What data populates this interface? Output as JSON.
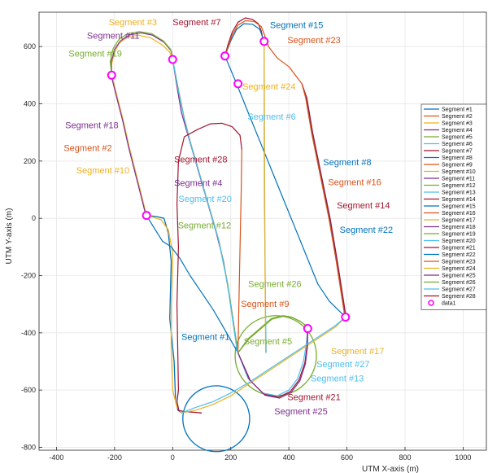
{
  "chart_data": {
    "type": "line",
    "title": "",
    "xlabel": "UTM X-axis (m)",
    "ylabel": "UTM Y-axis (m)",
    "xlim": [
      -460,
      1080
    ],
    "ylim": [
      -810,
      720
    ],
    "xticks": [
      -400,
      -200,
      0,
      200,
      400,
      600,
      800,
      1000
    ],
    "yticks": [
      -800,
      -600,
      -400,
      -200,
      0,
      200,
      400,
      600
    ],
    "grid": true,
    "legend_position": "right",
    "palette": [
      "#0072BD",
      "#D95319",
      "#EDB120",
      "#7E2F8E",
      "#77AC30",
      "#4DBEEE",
      "#A2142F"
    ],
    "series": [
      {
        "name": "Segment #1",
        "color": "#0072BD",
        "x": [
          -90,
          -60,
          -35,
          -5,
          25,
          60,
          100,
          140,
          180,
          225
        ],
        "y": [
          10,
          -40,
          -80,
          -100,
          -140,
          -200,
          -260,
          -320,
          -390,
          -470
        ]
      },
      {
        "name": "Segment #2",
        "color": "#D95319",
        "x": [
          -210,
          -190,
          -170,
          -150,
          -130,
          -110,
          -90
        ],
        "y": [
          500,
          420,
          340,
          250,
          170,
          90,
          10
        ]
      },
      {
        "name": "Segment #3",
        "color": "#EDB120",
        "x": [
          -210,
          -210,
          -200,
          -185,
          -160,
          -120,
          -75,
          -35,
          -10,
          0
        ],
        "y": [
          500,
          540,
          580,
          610,
          630,
          640,
          630,
          605,
          580,
          555
        ]
      },
      {
        "name": "Segment #4",
        "color": "#7E2F8E",
        "x": [
          0,
          15,
          30,
          50,
          70,
          90,
          110,
          130,
          150,
          175,
          200,
          225
        ],
        "y": [
          555,
          460,
          370,
          300,
          230,
          160,
          90,
          20,
          -50,
          -150,
          -300,
          -470
        ]
      },
      {
        "name": "Segment #5",
        "color": "#77AC30",
        "x": [
          225,
          260,
          300,
          340,
          380,
          410,
          440,
          460,
          465
        ],
        "y": [
          -470,
          -420,
          -385,
          -350,
          -340,
          -345,
          -360,
          -375,
          -385
        ]
      },
      {
        "name": "Segment #6",
        "color": "#4DBEEE",
        "x": [
          315,
          315,
          315,
          316,
          318,
          320,
          322
        ],
        "y": [
          618,
          500,
          300,
          50,
          -150,
          -350,
          -470
        ]
      },
      {
        "name": "Segment #7",
        "color": "#A2142F",
        "x": [
          180,
          190,
          205,
          225,
          250,
          275,
          295,
          305,
          312
        ],
        "y": [
          567,
          605,
          650,
          685,
          700,
          695,
          680,
          655,
          618
        ]
      },
      {
        "name": "Segment #8",
        "color": "#0072BD",
        "x": [
          445,
          460,
          480,
          510,
          540,
          565,
          585,
          595
        ],
        "y": [
          470,
          420,
          300,
          150,
          0,
          -150,
          -280,
          -345
        ]
      },
      {
        "name": "Segment #9",
        "color": "#D95319",
        "x": [
          225,
          227,
          230,
          233,
          236,
          238
        ],
        "y": [
          -470,
          -350,
          -200,
          -50,
          100,
          240
        ]
      },
      {
        "name": "Segment #10",
        "color": "#EDB120",
        "x": [
          -210,
          -190,
          -170,
          -150,
          -130,
          -110,
          -90
        ],
        "y": [
          500,
          420,
          340,
          250,
          170,
          90,
          10
        ]
      },
      {
        "name": "Segment #11",
        "color": "#7E2F8E",
        "x": [
          -210,
          -212,
          -200,
          -180,
          -150,
          -110,
          -70,
          -30,
          -5,
          0
        ],
        "y": [
          500,
          545,
          590,
          620,
          640,
          648,
          640,
          615,
          585,
          555
        ]
      },
      {
        "name": "Segment #12",
        "color": "#77AC30",
        "x": [
          0,
          20,
          40,
          60,
          80,
          100,
          120,
          140,
          160,
          190,
          225
        ],
        "y": [
          555,
          450,
          350,
          270,
          200,
          130,
          60,
          -10,
          -80,
          -230,
          -470
        ]
      },
      {
        "name": "Segment #13",
        "color": "#4DBEEE",
        "x": [
          225,
          260,
          310,
          360,
          400,
          430,
          450,
          460,
          465
        ],
        "y": [
          -470,
          -560,
          -610,
          -620,
          -600,
          -560,
          -500,
          -440,
          -385
        ]
      },
      {
        "name": "Segment #14",
        "color": "#A2142F",
        "x": [
          445,
          462,
          482,
          512,
          542,
          567,
          587,
          597
        ],
        "y": [
          470,
          420,
          300,
          150,
          0,
          -150,
          -280,
          -345
        ]
      },
      {
        "name": "Segment #15",
        "color": "#0072BD",
        "x": [
          180,
          200,
          220,
          245,
          275,
          300,
          315
        ],
        "y": [
          567,
          620,
          660,
          680,
          678,
          660,
          618
        ]
      },
      {
        "name": "Segment #16",
        "color": "#D95319",
        "x": [
          445,
          458,
          478,
          508,
          538,
          563,
          583,
          593
        ],
        "y": [
          470,
          420,
          300,
          150,
          0,
          -150,
          -280,
          -345
        ]
      },
      {
        "name": "Segment #17",
        "color": "#EDB120",
        "x": [
          595,
          560,
          500,
          440,
          380,
          320,
          260,
          200,
          140,
          80,
          30
        ],
        "y": [
          -345,
          -380,
          -420,
          -460,
          -500,
          -540,
          -580,
          -620,
          -650,
          -670,
          -680
        ]
      },
      {
        "name": "Segment #18",
        "color": "#7E2F8E",
        "x": [
          -212,
          -192,
          -172,
          -152,
          -132,
          -112,
          -92
        ],
        "y": [
          500,
          420,
          340,
          250,
          170,
          90,
          10
        ]
      },
      {
        "name": "Segment #19",
        "color": "#77AC30",
        "x": [
          -210,
          -215,
          -205,
          -185,
          -155,
          -115,
          -72,
          -32,
          -7,
          0
        ],
        "y": [
          500,
          548,
          593,
          625,
          645,
          652,
          645,
          620,
          590,
          555
        ]
      },
      {
        "name": "Segment #20",
        "color": "#4DBEEE",
        "x": [
          0,
          18,
          38,
          58,
          78,
          98,
          118,
          138,
          158,
          188,
          223
        ],
        "y": [
          555,
          455,
          355,
          275,
          205,
          135,
          65,
          -5,
          -75,
          -225,
          -470
        ]
      },
      {
        "name": "Segment #21",
        "color": "#A2142F",
        "x": [
          225,
          265,
          315,
          365,
          405,
          435,
          455,
          463,
          465
        ],
        "y": [
          -470,
          -565,
          -615,
          -625,
          -605,
          -565,
          -505,
          -445,
          -385
        ]
      },
      {
        "name": "Segment #22",
        "color": "#0072BD",
        "x": [
          180,
          220,
          260,
          300,
          340,
          380,
          420,
          460,
          500,
          540,
          580,
          595
        ],
        "y": [
          567,
          470,
          370,
          270,
          170,
          70,
          -30,
          -130,
          -230,
          -290,
          -330,
          -345
        ]
      },
      {
        "name": "Segment #23",
        "color": "#D95319",
        "x": [
          180,
          205,
          225,
          250,
          280,
          305,
          320,
          330,
          360,
          400,
          445
        ],
        "y": [
          567,
          640,
          675,
          690,
          688,
          670,
          630,
          600,
          560,
          530,
          470
        ]
      },
      {
        "name": "Segment #24",
        "color": "#EDB120",
        "x": [
          315,
          316,
          317,
          318,
          320
        ],
        "y": [
          618,
          400,
          100,
          -200,
          -470
        ]
      },
      {
        "name": "Segment #25",
        "color": "#7E2F8E",
        "x": [
          225,
          268,
          318,
          368,
          408,
          438,
          457,
          464,
          465
        ],
        "y": [
          -470,
          -568,
          -618,
          -628,
          -608,
          -568,
          -508,
          -448,
          -385
        ]
      },
      {
        "name": "Segment #26",
        "color": "#77AC30",
        "x": [
          225,
          262,
          302,
          342,
          382,
          412,
          442,
          462,
          465
        ],
        "y": [
          -470,
          -422,
          -387,
          -352,
          -342,
          -347,
          -362,
          -377,
          -385
        ]
      },
      {
        "name": "Segment #27",
        "color": "#4DBEEE",
        "x": [
          30,
          80,
          140,
          200,
          260,
          320,
          380,
          440,
          500,
          560,
          595
        ],
        "y": [
          -680,
          -660,
          -640,
          -610,
          -575,
          -535,
          -495,
          -455,
          -415,
          -375,
          -345
        ]
      },
      {
        "name": "Segment #28",
        "color": "#A2142F",
        "x": [
          238,
          232,
          205,
          170,
          130,
          85,
          40,
          20,
          15,
          20,
          15,
          20
        ],
        "y": [
          240,
          290,
          320,
          332,
          330,
          310,
          285,
          200,
          50,
          -100,
          -300,
          -600
        ]
      }
    ],
    "extra_paths": [
      {
        "color": "#0072BD",
        "x": [
          30,
          18,
          10,
          5,
          -10,
          -5,
          -15,
          -30,
          -50,
          -70,
          -90
        ],
        "y": [
          -680,
          -670,
          -640,
          -500,
          -350,
          -150,
          -50,
          0,
          5,
          8,
          10
        ]
      },
      {
        "color": "#EDB120",
        "x": [
          30,
          15,
          0,
          -5,
          -5,
          0,
          -15,
          -40,
          -70,
          -90
        ],
        "y": [
          -680,
          -660,
          -600,
          -450,
          -300,
          -120,
          -40,
          -5,
          5,
          10
        ]
      },
      {
        "color": "#A2142F",
        "x": [
          20,
          15,
          20,
          20,
          25,
          40,
          80,
          100
        ],
        "y": [
          -600,
          -640,
          -665,
          -670,
          -672,
          -675,
          -678,
          -680
        ]
      }
    ],
    "circles": [
      {
        "cx": 150,
        "cy": -700,
        "r": 115,
        "color": "#0072BD"
      },
      {
        "cx": 355,
        "cy": -480,
        "r": 140,
        "color": "#77AC30"
      }
    ],
    "markers": {
      "name": "data1",
      "color": "#FF00FF",
      "points": [
        [
          -210,
          500
        ],
        [
          0,
          555
        ],
        [
          180,
          567
        ],
        [
          315,
          618
        ],
        [
          -90,
          10
        ],
        [
          225,
          470.0001
        ],
        [
          465,
          -385
        ],
        [
          595,
          -345
        ]
      ]
    },
    "annotations": [
      {
        "text": "Segment #3",
        "color": "#EDB120",
        "x": -220,
        "y": 675
      },
      {
        "text": "Segment #7",
        "color": "#A2142F",
        "x": 0,
        "y": 675
      },
      {
        "text": "Segment #15",
        "color": "#0072BD",
        "x": 335,
        "y": 665
      },
      {
        "text": "Segment #23",
        "color": "#D95319",
        "x": 395,
        "y": 612
      },
      {
        "text": "Segment #11",
        "color": "#7E2F8E",
        "x": -295,
        "y": 628
      },
      {
        "text": "Segment #19",
        "color": "#77AC30",
        "x": -358,
        "y": 565
      },
      {
        "text": "Segment #24",
        "color": "#EDB120",
        "x": 240,
        "y": 450
      },
      {
        "text": "Segment #6",
        "color": "#4DBEEE",
        "x": 258,
        "y": 345
      },
      {
        "text": "Segment #18",
        "color": "#7E2F8E",
        "x": -370,
        "y": 315
      },
      {
        "text": "Segment #2",
        "color": "#D95319",
        "x": -375,
        "y": 235
      },
      {
        "text": "Segment #10",
        "color": "#EDB120",
        "x": -332,
        "y": 157
      },
      {
        "text": "Segment #28",
        "color": "#A2142F",
        "x": 5,
        "y": 195
      },
      {
        "text": "Segment #4",
        "color": "#7E2F8E",
        "x": 5,
        "y": 113
      },
      {
        "text": "Segment #20",
        "color": "#4DBEEE",
        "x": 20,
        "y": 57
      },
      {
        "text": "Segment #12",
        "color": "#77AC30",
        "x": 18,
        "y": -35
      },
      {
        "text": "Segment #8",
        "color": "#0072BD",
        "x": 518,
        "y": 185
      },
      {
        "text": "Segment #16",
        "color": "#D95319",
        "x": 535,
        "y": 115
      },
      {
        "text": "Segment #14",
        "color": "#A2142F",
        "x": 565,
        "y": 35
      },
      {
        "text": "Segment #22",
        "color": "#0072BD",
        "x": 575,
        "y": -50
      },
      {
        "text": "Segment #26",
        "color": "#77AC30",
        "x": 260,
        "y": -240
      },
      {
        "text": "Segment #9",
        "color": "#D95319",
        "x": 235,
        "y": -310
      },
      {
        "text": "Segment #1",
        "color": "#0072BD",
        "x": 30,
        "y": -425
      },
      {
        "text": "Segment #5",
        "color": "#77AC30",
        "x": 245,
        "y": -440
      },
      {
        "text": "Segment #17",
        "color": "#EDB120",
        "x": 545,
        "y": -475
      },
      {
        "text": "Segment #27",
        "color": "#4DBEEE",
        "x": 495,
        "y": -520
      },
      {
        "text": "Segment #13",
        "color": "#4DBEEE",
        "x": 475,
        "y": -570
      },
      {
        "text": "Segment #21",
        "color": "#A2142F",
        "x": 395,
        "y": -635
      },
      {
        "text": "Segment #25",
        "color": "#7E2F8E",
        "x": 350,
        "y": -685
      }
    ]
  }
}
